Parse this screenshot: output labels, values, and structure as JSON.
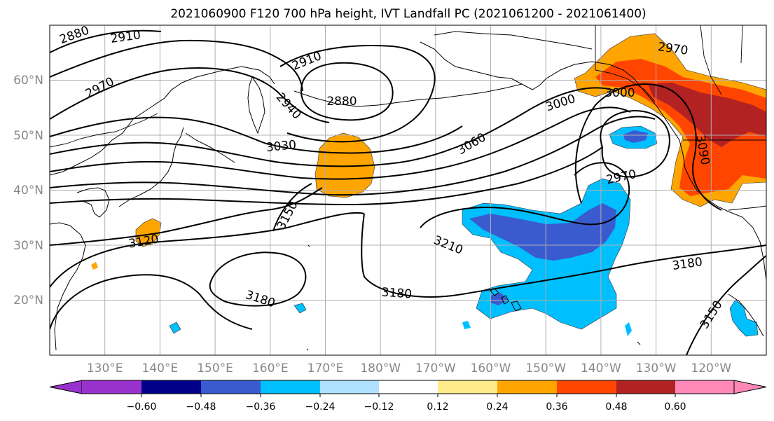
{
  "title": "2021060900 F120 700 hPa height, IVT Landfall PC (2021061200 - 2021061400)",
  "map": {
    "projection": "PlateCarree",
    "lon_range": [
      120,
      250
    ],
    "lat_range": [
      10,
      70
    ],
    "lat_labels": [
      "20°N",
      "30°N",
      "40°N",
      "50°N",
      "60°N"
    ],
    "lon_labels": [
      "130°E",
      "140°E",
      "150°E",
      "160°E",
      "170°E",
      "180°W",
      "170°W",
      "160°W",
      "150°W",
      "140°W",
      "130°W",
      "120°W"
    ],
    "gridlines": true,
    "grid_color": "#b0b0b0",
    "coastline_color": "#000000"
  },
  "height_contours": {
    "variable": "700 hPa height",
    "line_color": "#000000",
    "labels": [
      "2880",
      "2910",
      "2970",
      "2910",
      "2880",
      "2940",
      "3000",
      "3030",
      "3060",
      "3000",
      "2970",
      "2970",
      "3090",
      "3150",
      "3120",
      "3210",
      "3180",
      "3180",
      "3180",
      "3150"
    ]
  },
  "shading": {
    "variable": "IVT Landfall PC",
    "colorbar_ticks": [
      "−0.60",
      "−0.48",
      "−0.36",
      "−0.24",
      "−0.12",
      "0.12",
      "0.24",
      "0.36",
      "0.48",
      "0.60"
    ],
    "bin_colors": [
      "#9932cc",
      "#00008b",
      "#3a5bd0",
      "#00bfff",
      "#b0e0ff",
      "#ffffff",
      "#ffeb8a",
      "#ffa500",
      "#ff4500",
      "#b22222",
      "#ff88b8"
    ],
    "extend": "both"
  }
}
